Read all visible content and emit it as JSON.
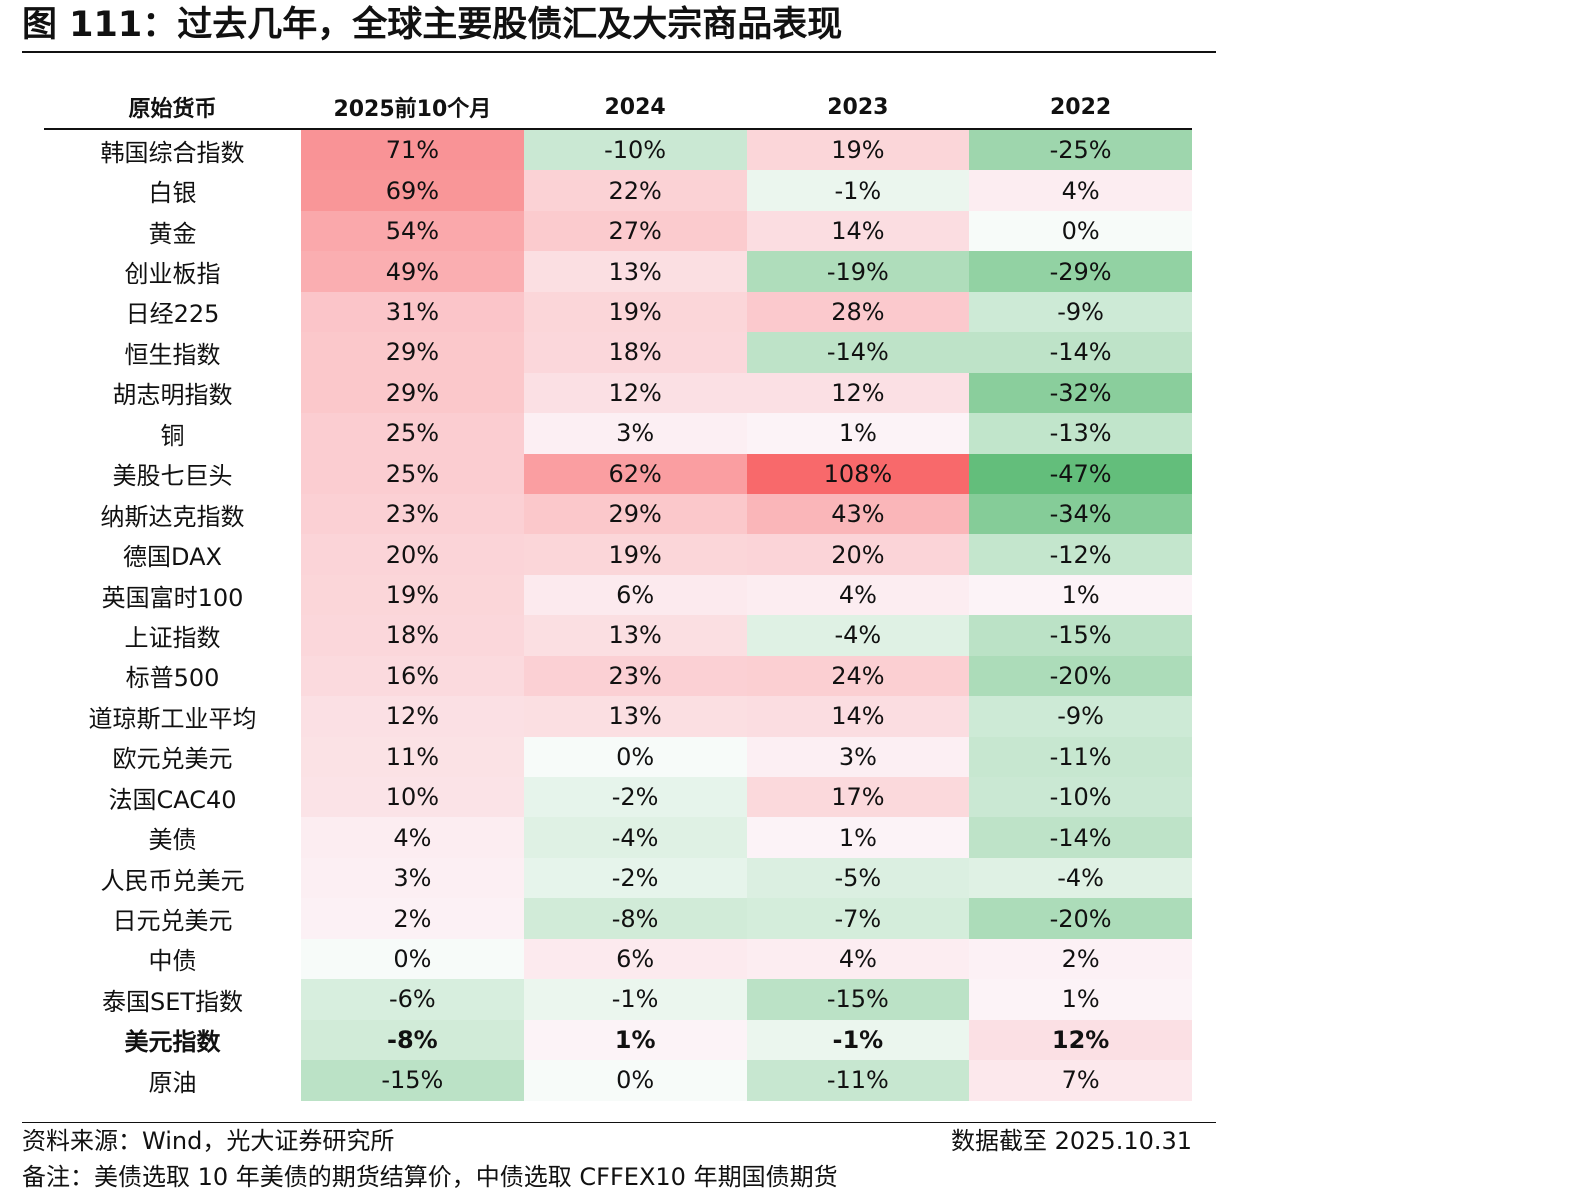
{
  "title": "图 111：过去几年，全球主要股债汇及大宗商品表现",
  "table": {
    "headers": [
      "原始货币",
      "2025前10个月",
      "2024",
      "2023",
      "2022"
    ],
    "rows": [
      {
        "name": "韩国综合指数",
        "values": [
          71,
          -10,
          19,
          -25
        ],
        "labels": [
          "71%",
          "-10%",
          "19%",
          "-25%"
        ],
        "bold": false
      },
      {
        "name": "白银",
        "values": [
          69,
          22,
          -1,
          4
        ],
        "labels": [
          "69%",
          "22%",
          "-1%",
          "4%"
        ],
        "bold": false
      },
      {
        "name": "黄金",
        "values": [
          54,
          27,
          14,
          0
        ],
        "labels": [
          "54%",
          "27%",
          "14%",
          "0%"
        ],
        "bold": false
      },
      {
        "name": "创业板指",
        "values": [
          49,
          13,
          -19,
          -29
        ],
        "labels": [
          "49%",
          "13%",
          "-19%",
          "-29%"
        ],
        "bold": false
      },
      {
        "name": "日经225",
        "values": [
          31,
          19,
          28,
          -9
        ],
        "labels": [
          "31%",
          "19%",
          "28%",
          "-9%"
        ],
        "bold": false
      },
      {
        "name": "恒生指数",
        "values": [
          29,
          18,
          -14,
          -14
        ],
        "labels": [
          "29%",
          "18%",
          "-14%",
          "-14%"
        ],
        "bold": false
      },
      {
        "name": "胡志明指数",
        "values": [
          29,
          12,
          12,
          -32
        ],
        "labels": [
          "29%",
          "12%",
          "12%",
          "-32%"
        ],
        "bold": false
      },
      {
        "name": "铜",
        "values": [
          25,
          3,
          1,
          -13
        ],
        "labels": [
          "25%",
          "3%",
          "1%",
          "-13%"
        ],
        "bold": false
      },
      {
        "name": "美股七巨头",
        "values": [
          25,
          62,
          108,
          -47
        ],
        "labels": [
          "25%",
          "62%",
          "108%",
          "-47%"
        ],
        "bold": false
      },
      {
        "name": "纳斯达克指数",
        "values": [
          23,
          29,
          43,
          -34
        ],
        "labels": [
          "23%",
          "29%",
          "43%",
          "-34%"
        ],
        "bold": false
      },
      {
        "name": "德国DAX",
        "values": [
          20,
          19,
          20,
          -12
        ],
        "labels": [
          "20%",
          "19%",
          "20%",
          "-12%"
        ],
        "bold": false
      },
      {
        "name": "英国富时100",
        "values": [
          19,
          6,
          4,
          1
        ],
        "labels": [
          "19%",
          "6%",
          "4%",
          "1%"
        ],
        "bold": false
      },
      {
        "name": "上证指数",
        "values": [
          18,
          13,
          -4,
          -15
        ],
        "labels": [
          "18%",
          "13%",
          "-4%",
          "-15%"
        ],
        "bold": false
      },
      {
        "name": "标普500",
        "values": [
          16,
          23,
          24,
          -20
        ],
        "labels": [
          "16%",
          "23%",
          "24%",
          "-20%"
        ],
        "bold": false
      },
      {
        "name": "道琼斯工业平均",
        "values": [
          12,
          13,
          14,
          -9
        ],
        "labels": [
          "12%",
          "13%",
          "14%",
          "-9%"
        ],
        "bold": false
      },
      {
        "name": "欧元兑美元",
        "values": [
          11,
          0,
          3,
          -11
        ],
        "labels": [
          "11%",
          "0%",
          "3%",
          "-11%"
        ],
        "bold": false
      },
      {
        "name": "法国CAC40",
        "values": [
          10,
          -2,
          17,
          -10
        ],
        "labels": [
          "10%",
          "-2%",
          "17%",
          "-10%"
        ],
        "bold": false
      },
      {
        "name": "美债",
        "values": [
          4,
          -4,
          1,
          -14
        ],
        "labels": [
          "4%",
          "-4%",
          "1%",
          "-14%"
        ],
        "bold": false
      },
      {
        "name": "人民币兑美元",
        "values": [
          3,
          -2,
          -5,
          -4
        ],
        "labels": [
          "3%",
          "-2%",
          "-5%",
          "-4%"
        ],
        "bold": false
      },
      {
        "name": "日元兑美元",
        "values": [
          2,
          -8,
          -7,
          -20
        ],
        "labels": [
          "2%",
          "-8%",
          "-7%",
          "-20%"
        ],
        "bold": false
      },
      {
        "name": "中债",
        "values": [
          0,
          6,
          4,
          2
        ],
        "labels": [
          "0%",
          "6%",
          "4%",
          "2%"
        ],
        "bold": false
      },
      {
        "name": "泰国SET指数",
        "values": [
          -6,
          -1,
          -15,
          1
        ],
        "labels": [
          "-6%",
          "-1%",
          "-15%",
          "1%"
        ],
        "bold": false
      },
      {
        "name": "美元指数",
        "values": [
          -8,
          1,
          -1,
          12
        ],
        "labels": [
          "-8%",
          "1%",
          "-1%",
          "12%"
        ],
        "bold": true
      },
      {
        "name": "原油",
        "values": [
          -15,
          0,
          -11,
          7
        ],
        "labels": [
          "-15%",
          "0%",
          "-11%",
          "7%"
        ],
        "bold": false
      }
    ]
  },
  "colors": {
    "positive_max": "#f8696b",
    "negative_max": "#63be7b",
    "neutral": "#f7fbf9"
  },
  "footer": {
    "source": "资料来源：Wind，光大证券研究所",
    "cutoff": "数据截至 2025.10.31",
    "note": "备注：美债选取 10 年美债的期货结算价，中债选取 CFFEX10 年期国债期货"
  }
}
